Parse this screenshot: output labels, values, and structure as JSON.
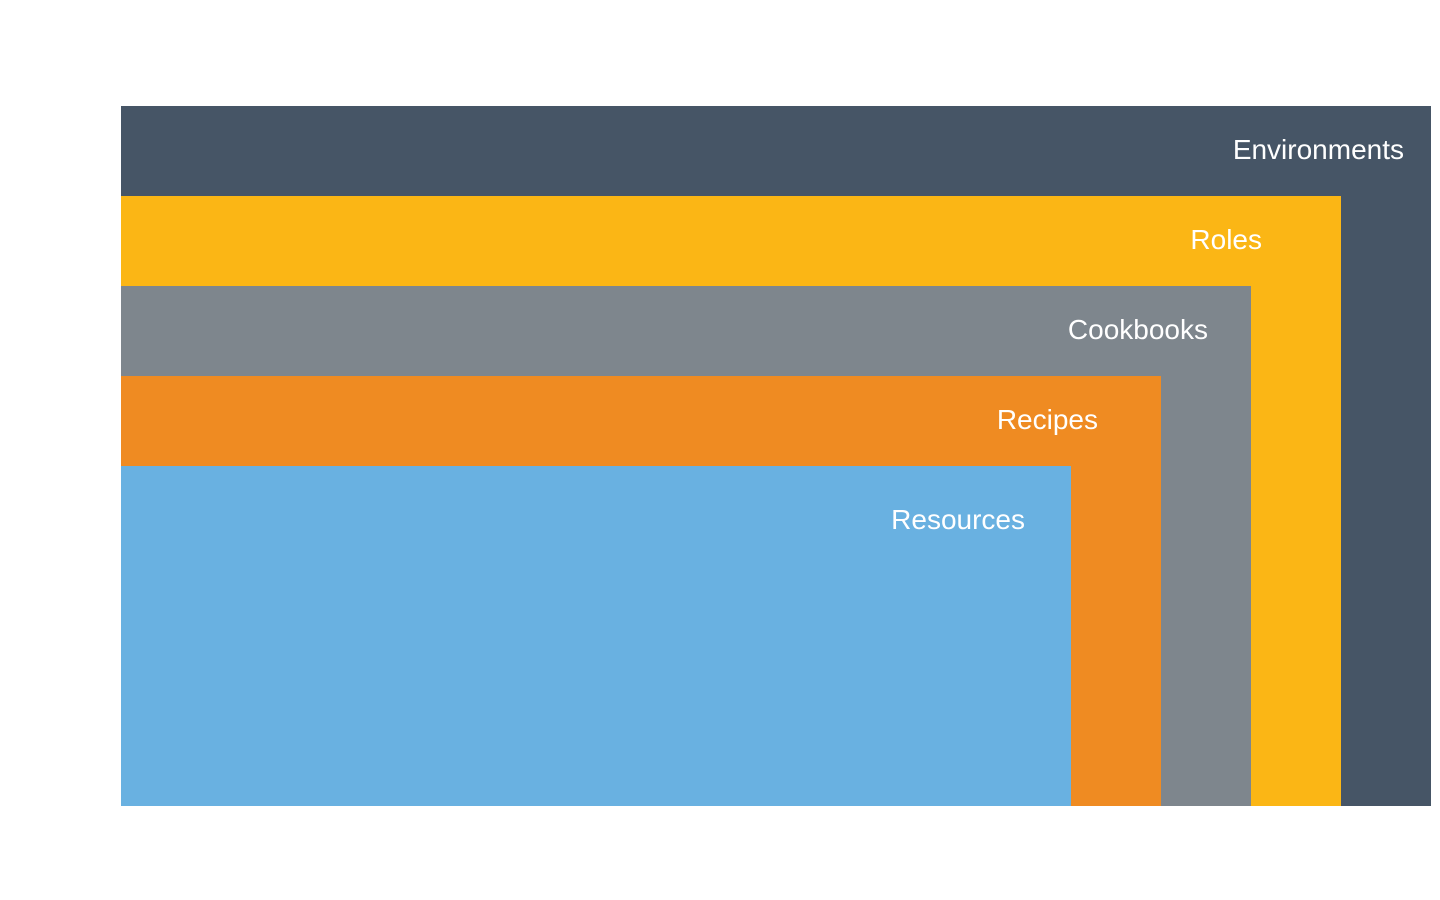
{
  "layers": [
    {
      "id": "environments",
      "label": "Environments",
      "color": "#465566"
    },
    {
      "id": "roles",
      "label": "Roles",
      "color": "#FBB615"
    },
    {
      "id": "cookbooks",
      "label": "Cookbooks",
      "color": "#7E868D"
    },
    {
      "id": "recipes",
      "label": "Recipes",
      "color": "#EF8B22"
    },
    {
      "id": "resources",
      "label": "Resources",
      "color": "#69B1E1"
    }
  ]
}
